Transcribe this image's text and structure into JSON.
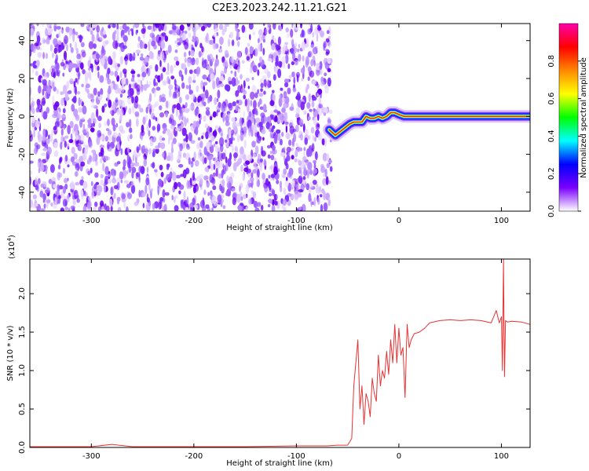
{
  "title": "C2E3.2023.242.11.21.G21",
  "chart_data": [
    {
      "type": "heatmap",
      "xlabel": "Height of straight line (km)",
      "ylabel": "Frequency (Hz)",
      "xlim": [
        -360,
        128
      ],
      "ylim": [
        -50,
        49
      ],
      "x_ticks": [
        -300,
        -200,
        -100,
        0,
        100
      ],
      "x_tick_labels": [
        "-300",
        "-200",
        "-100",
        "0",
        "100"
      ],
      "y_ticks": [
        -40,
        -20,
        0,
        20,
        40
      ],
      "y_tick_labels": [
        "-40",
        "-20",
        "0",
        "20",
        "40"
      ],
      "noise_region_x": [
        -360,
        -66
      ],
      "signal_trace": {
        "x": [
          -68,
          -62,
          -55,
          -48,
          -44,
          -40,
          -36,
          -32,
          -28,
          -24,
          -20,
          -16,
          -12,
          -8,
          -4,
          0,
          5,
          20,
          60,
          100,
          128
        ],
        "y": [
          -7,
          -10,
          -7,
          -4,
          -3,
          -3,
          -3,
          0,
          -1,
          -1,
          0,
          -1,
          0,
          2,
          2,
          1,
          0,
          0,
          0,
          0,
          0
        ]
      },
      "colorbar": {
        "label": "Normalized spectral amplitude",
        "range": [
          0,
          1
        ],
        "ticks": [
          0.0,
          0.2,
          0.4,
          0.6,
          0.8
        ],
        "tick_labels": [
          "0.0",
          "0.2",
          "0.4",
          "0.6",
          "0.8"
        ],
        "colors": [
          "#ffffff",
          "#7a00ff",
          "#0000ff",
          "#00ffff",
          "#00ff00",
          "#ffff00",
          "#ff8800",
          "#ff0000",
          "#ff00aa"
        ]
      },
      "grid": false
    },
    {
      "type": "line",
      "xlabel": "Height of straight line (km)",
      "ylabel": "SNR (10 * v/v)",
      "scale_label": "(x10",
      "scale_exp": "4",
      "scale_close": ")",
      "xlim": [
        -360,
        128
      ],
      "ylim": [
        0,
        2.45
      ],
      "x_ticks": [
        -300,
        -200,
        -100,
        0,
        100
      ],
      "x_tick_labels": [
        "-300",
        "-200",
        "-100",
        "0",
        "100"
      ],
      "y_ticks": [
        0.0,
        0.5,
        1.0,
        1.5,
        2.0
      ],
      "y_tick_labels": [
        "0.0",
        "0.5",
        "1.0",
        "1.5",
        "2.0"
      ],
      "color": "#e83232",
      "grid": false,
      "series": [
        {
          "x": [
            -360,
            -300,
            -280,
            -260,
            -200,
            -150,
            -100,
            -70,
            -60,
            -50,
            -46,
            -44,
            -42,
            -40,
            -38,
            -36,
            -34,
            -32,
            -30,
            -28,
            -26,
            -24,
            -22,
            -20,
            -18,
            -16,
            -14,
            -12,
            -10,
            -8,
            -6,
            -4,
            -2,
            0,
            2,
            4,
            6,
            8,
            10,
            12,
            15,
            20,
            25,
            30,
            40,
            50,
            60,
            70,
            80,
            90,
            95,
            98,
            100,
            101,
            102,
            103,
            104,
            106,
            110,
            120,
            128
          ],
          "y": [
            0.01,
            0.01,
            0.04,
            0.01,
            0.01,
            0.01,
            0.02,
            0.02,
            0.03,
            0.03,
            0.12,
            0.8,
            1.1,
            1.4,
            0.5,
            0.8,
            0.3,
            0.7,
            0.6,
            0.4,
            0.9,
            0.7,
            0.6,
            1.2,
            0.8,
            1.0,
            0.9,
            1.25,
            0.95,
            1.4,
            1.1,
            1.6,
            1.1,
            1.55,
            1.2,
            1.3,
            0.65,
            1.6,
            1.3,
            1.4,
            1.48,
            1.5,
            1.55,
            1.62,
            1.65,
            1.66,
            1.65,
            1.66,
            1.65,
            1.62,
            1.78,
            1.62,
            1.7,
            1.0,
            2.45,
            0.92,
            1.65,
            1.63,
            1.64,
            1.63,
            1.6
          ]
        }
      ]
    }
  ]
}
